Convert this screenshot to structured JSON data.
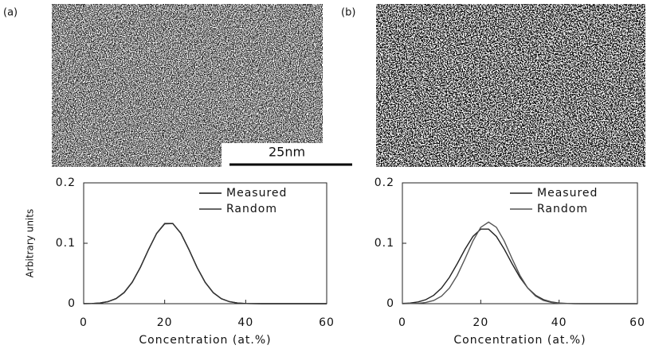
{
  "panels": [
    {
      "label": "(a)"
    },
    {
      "label": "(b)"
    }
  ],
  "scale_bar": "25nm",
  "chart_data": [
    {
      "type": "line",
      "y_label": "Arbitrary units",
      "x_label": "Concentration (at.%)",
      "x": [
        0,
        2,
        4,
        6,
        8,
        10,
        12,
        14,
        16,
        18,
        20,
        22,
        24,
        26,
        28,
        30,
        32,
        34,
        36,
        38,
        40,
        42,
        44,
        46,
        48,
        50,
        52,
        54,
        56,
        58,
        60
      ],
      "xlim": [
        0,
        60
      ],
      "xticks": [
        0,
        20,
        40,
        60
      ],
      "ylim": [
        0,
        0.2
      ],
      "yticks": [
        0,
        0.1,
        0.2
      ],
      "legend": "upper-right",
      "series": [
        {
          "name": "Measured",
          "color": "#111111",
          "values": [
            0.0001,
            0.0003,
            0.0011,
            0.0034,
            0.0085,
            0.0186,
            0.0358,
            0.0603,
            0.0894,
            0.116,
            0.1322,
            0.1326,
            0.1166,
            0.0895,
            0.06,
            0.0352,
            0.0181,
            0.0082,
            0.0033,
            0.0011,
            0.0003,
            0.0001,
            0,
            0,
            0,
            0,
            0,
            0,
            0,
            0,
            0
          ]
        },
        {
          "name": "Random",
          "color": "#333333",
          "values": [
            0.0001,
            0.0003,
            0.0011,
            0.0033,
            0.0083,
            0.0183,
            0.0354,
            0.06,
            0.0893,
            0.1163,
            0.1328,
            0.1328,
            0.1163,
            0.0893,
            0.06,
            0.0354,
            0.0183,
            0.0083,
            0.0033,
            0.0011,
            0.0003,
            0.0001,
            0,
            0,
            0,
            0,
            0,
            0,
            0,
            0,
            0
          ]
        }
      ]
    },
    {
      "type": "line",
      "x_label": "Concentration (at.%)",
      "x": [
        0,
        2,
        4,
        6,
        8,
        10,
        12,
        14,
        16,
        18,
        20,
        22,
        24,
        26,
        28,
        30,
        32,
        34,
        36,
        38,
        40,
        42,
        44,
        46,
        48,
        50,
        52,
        54,
        56,
        58,
        60
      ],
      "xlim": [
        0,
        60
      ],
      "xticks": [
        0,
        20,
        40,
        60
      ],
      "ylim": [
        0,
        0.2
      ],
      "yticks": [
        0,
        0.1,
        0.2
      ],
      "legend": "upper-right",
      "series": [
        {
          "name": "Measured",
          "color": "#222222",
          "values": [
            0.0004,
            0.0011,
            0.0029,
            0.0067,
            0.0139,
            0.0259,
            0.0436,
            0.0661,
            0.0903,
            0.1112,
            0.1234,
            0.1234,
            0.1112,
            0.0903,
            0.0661,
            0.0436,
            0.0259,
            0.0139,
            0.0067,
            0.0029,
            0.0011,
            0.0004,
            0.0001,
            0,
            0,
            0,
            0,
            0,
            0,
            0,
            0
          ]
        },
        {
          "name": "Random",
          "color": "#555555",
          "values": [
            0,
            0.0002,
            0.0006,
            0.002,
            0.0053,
            0.0125,
            0.0259,
            0.0469,
            0.0745,
            0.1037,
            0.1264,
            0.135,
            0.1264,
            0.1037,
            0.0745,
            0.0469,
            0.0259,
            0.0125,
            0.0053,
            0.002,
            0.0006,
            0.0002,
            0,
            0,
            0,
            0,
            0,
            0,
            0,
            0,
            0
          ]
        }
      ]
    }
  ]
}
